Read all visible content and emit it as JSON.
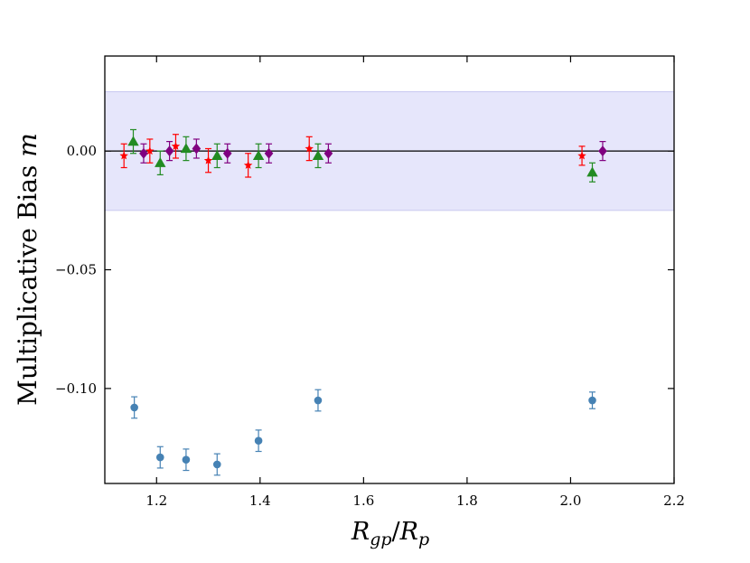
{
  "chart_data": {
    "type": "scatter",
    "title": "",
    "xlabel_parts": {
      "r1": "R",
      "s1": "gp",
      "slash": "/",
      "r2": "R",
      "s2": "p"
    },
    "ylabel_parts": {
      "text": "Multiplicative Bias ",
      "var": "m"
    },
    "xlim": [
      1.1,
      2.2
    ],
    "ylim": [
      -0.14,
      0.04
    ],
    "xticks": [
      1.2,
      1.4,
      1.6,
      1.8,
      2.0,
      2.2
    ],
    "xtick_labels": [
      "1.2",
      "1.4",
      "1.6",
      "1.8",
      "2.0",
      "2.2"
    ],
    "yticks": [
      0.0,
      -0.05,
      -0.1
    ],
    "ytick_labels": [
      "0.00",
      "−0.05",
      "−0.10"
    ],
    "band": {
      "ymin": -0.025,
      "ymax": 0.025,
      "color": "#e6e6fb",
      "edge": "#c8c8f0"
    },
    "hline": {
      "y": 0.0,
      "color": "#000000"
    },
    "grid": false,
    "series": [
      {
        "name": "blue-circles",
        "marker": "circle",
        "color": "#4682b4",
        "x": [
          1.157,
          1.207,
          1.257,
          1.317,
          1.397,
          1.512,
          2.042
        ],
        "y": [
          -0.108,
          -0.129,
          -0.13,
          -0.132,
          -0.122,
          -0.105,
          -0.105
        ],
        "err": [
          0.0045,
          0.0045,
          0.0045,
          0.0045,
          0.0045,
          0.0045,
          0.0035
        ]
      },
      {
        "name": "red-stars",
        "marker": "star",
        "color": "#ff0000",
        "x": [
          1.137,
          1.187,
          1.237,
          1.3,
          1.377,
          1.495,
          2.022
        ],
        "y": [
          -0.002,
          0.0,
          0.002,
          -0.004,
          -0.006,
          0.001,
          -0.002
        ],
        "err": [
          0.005,
          0.005,
          0.005,
          0.005,
          0.005,
          0.005,
          0.004
        ]
      },
      {
        "name": "green-triangles",
        "marker": "triangle",
        "color": "#228b22",
        "x": [
          1.155,
          1.207,
          1.257,
          1.317,
          1.397,
          1.512,
          2.042
        ],
        "y": [
          0.004,
          -0.005,
          0.001,
          -0.002,
          -0.002,
          -0.002,
          -0.009
        ],
        "err": [
          0.005,
          0.005,
          0.005,
          0.005,
          0.005,
          0.005,
          0.004
        ]
      },
      {
        "name": "purple-diamonds",
        "marker": "diamond",
        "color": "#800080",
        "x": [
          1.175,
          1.225,
          1.277,
          1.337,
          1.417,
          1.532,
          2.062
        ],
        "y": [
          -0.001,
          0.0,
          0.001,
          -0.001,
          -0.001,
          -0.001,
          0.0
        ],
        "err": [
          0.004,
          0.004,
          0.004,
          0.004,
          0.004,
          0.004,
          0.004
        ]
      }
    ]
  }
}
